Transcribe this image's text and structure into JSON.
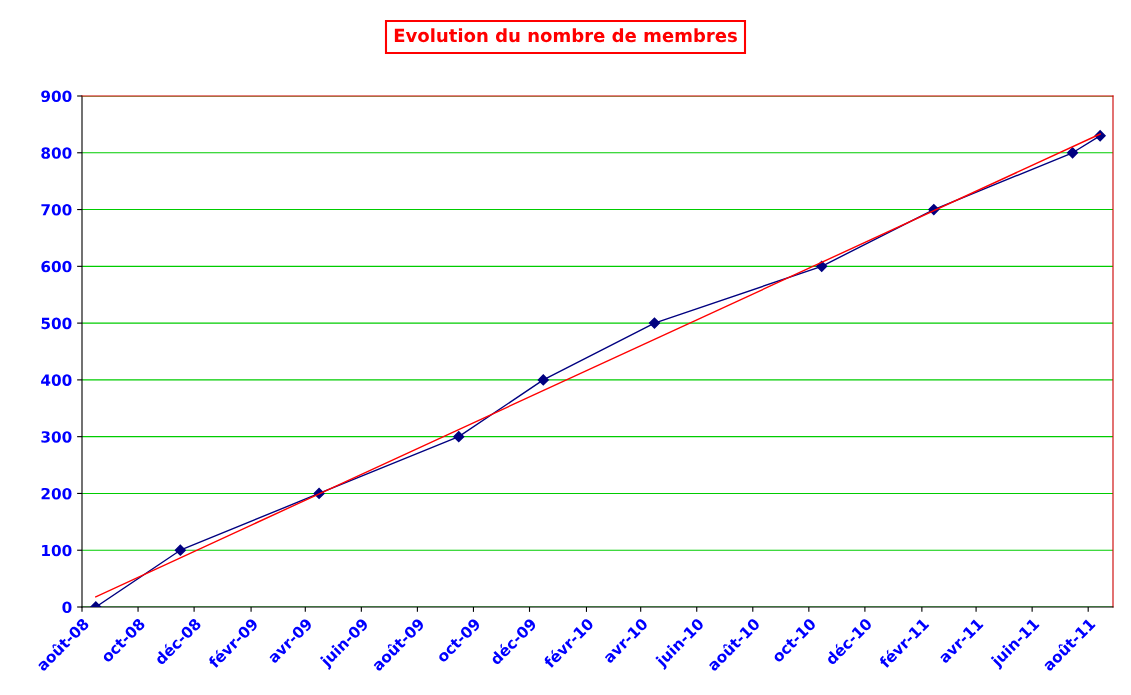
{
  "chart_data": {
    "type": "line",
    "title": "Evolution du nombre de membres",
    "x": [
      "2008-08-16",
      "2008-11-16",
      "2009-04-16",
      "2009-09-15",
      "2009-12-16",
      "2010-04-16",
      "2010-10-15",
      "2011-02-14",
      "2011-07-15",
      "2011-08-14"
    ],
    "series": [
      {
        "color": "#000080",
        "values": [
          0,
          100,
          200,
          300,
          400,
          500,
          600,
          700,
          800,
          830
        ],
        "marker": "diamond"
      },
      {
        "type": "line",
        "color": "#ff0000",
        "x": [
          "2008-08-16",
          "2011-08-14"
        ],
        "values": [
          18,
          833
        ],
        "marker": "none"
      }
    ],
    "xlim": [
      "2008-08-01",
      "2011-08-28"
    ],
    "xticks": [
      {
        "value": "2008-08-01",
        "label": "août-08"
      },
      {
        "value": "2008-10-01",
        "label": "oct-08"
      },
      {
        "value": "2008-12-01",
        "label": "déc-08"
      },
      {
        "value": "2009-02-01",
        "label": "févr-09"
      },
      {
        "value": "2009-04-01",
        "label": "avr-09"
      },
      {
        "value": "2009-06-01",
        "label": "juin-09"
      },
      {
        "value": "2009-08-01",
        "label": "août-09"
      },
      {
        "value": "2009-10-01",
        "label": "oct-09"
      },
      {
        "value": "2009-12-01",
        "label": "déc-09"
      },
      {
        "value": "2010-02-01",
        "label": "févr-10"
      },
      {
        "value": "2010-04-01",
        "label": "avr-10"
      },
      {
        "value": "2010-06-01",
        "label": "juin-10"
      },
      {
        "value": "2010-08-01",
        "label": "août-10"
      },
      {
        "value": "2010-10-01",
        "label": "oct-10"
      },
      {
        "value": "2010-12-01",
        "label": "déc-10"
      },
      {
        "value": "2011-02-01",
        "label": "févr-11"
      },
      {
        "value": "2011-04-01",
        "label": "avr-11"
      },
      {
        "value": "2011-06-01",
        "label": "juin-11"
      },
      {
        "value": "2011-08-01",
        "label": "août-11"
      }
    ],
    "ylim": [
      0,
      900
    ],
    "yticks": [
      0,
      100,
      200,
      300,
      400,
      500,
      600,
      700,
      800,
      900
    ],
    "grid": "y",
    "legend": false,
    "line_style": "solid"
  }
}
